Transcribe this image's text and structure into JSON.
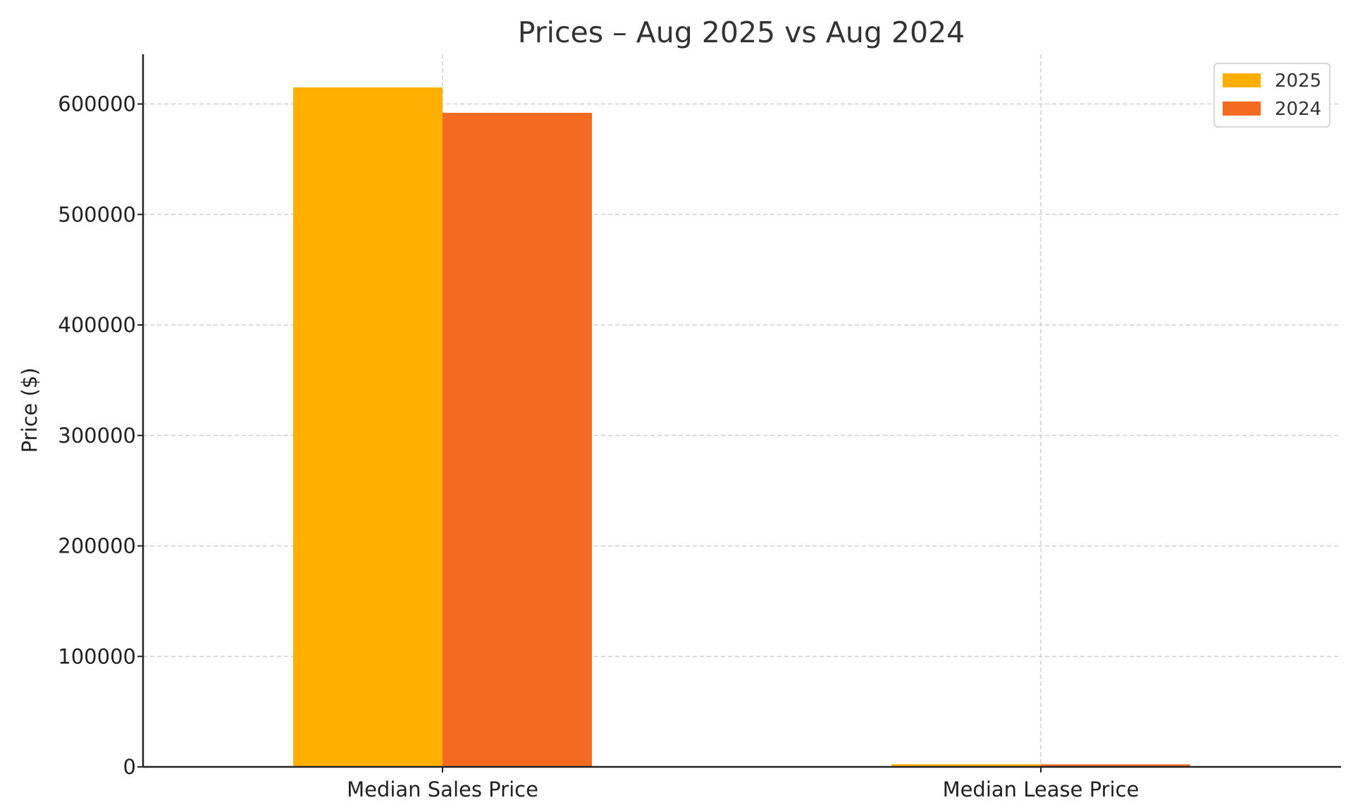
{
  "chart_data": {
    "type": "bar",
    "title": "Prices – Aug 2025 vs Aug 2024",
    "xlabel": "",
    "ylabel": "Price ($)",
    "categories": [
      "Median Sales Price",
      "Median Lease Price"
    ],
    "series": [
      {
        "name": "2025",
        "values": [
          615000,
          2400
        ],
        "color": "#FFAF00"
      },
      {
        "name": "2024",
        "values": [
          592000,
          2300
        ],
        "color": "#F26B21"
      }
    ],
    "ylim": [
      0,
      645000
    ],
    "yticks": [
      0,
      100000,
      200000,
      300000,
      400000,
      500000,
      600000
    ],
    "ytick_labels": [
      "0",
      "100000",
      "200000",
      "300000",
      "400000",
      "500000",
      "600000"
    ],
    "grid": true,
    "legend_position": "top-right"
  }
}
